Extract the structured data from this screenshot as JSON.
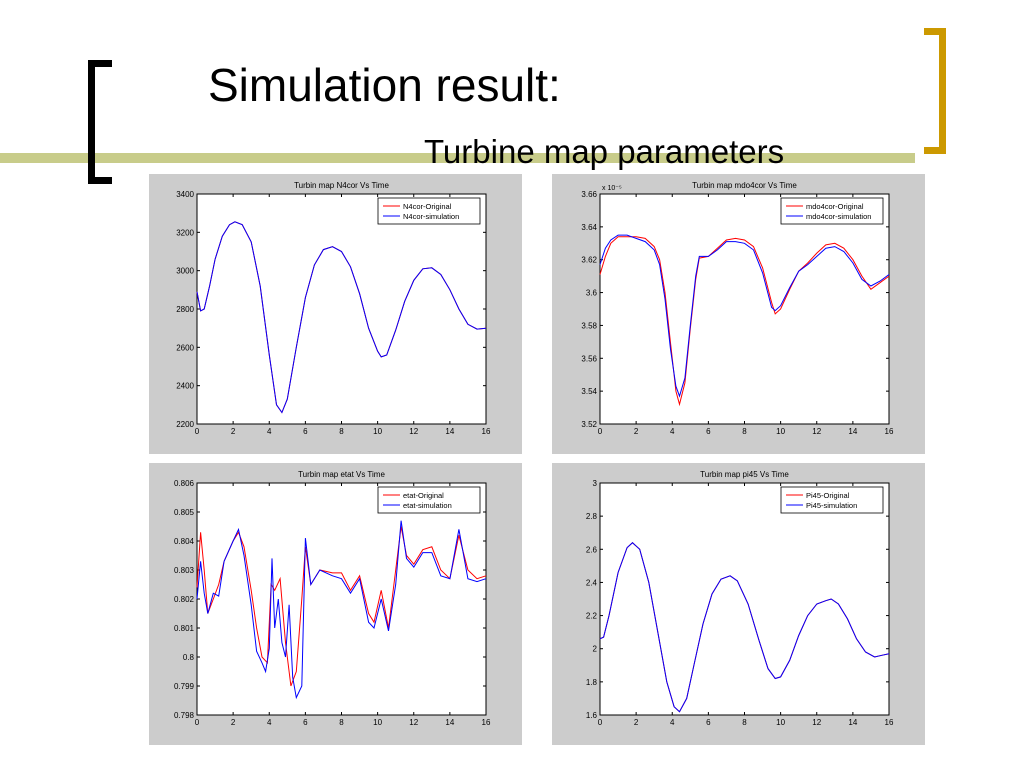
{
  "slide": {
    "title": "Simulation result:",
    "subtitle": "Turbine map parameters"
  },
  "colors": {
    "accent_bar": "#c8cc8a",
    "left_bracket": "#000000",
    "right_bracket": "#cc9900",
    "panel_bg": "#cccccc",
    "original": "#ff0000",
    "simulation": "#0000ff"
  },
  "chart_data": [
    {
      "type": "line",
      "title": "Turbin map N4cor Vs Time",
      "xlabel": "",
      "ylabel": "",
      "xlim": [
        0,
        16
      ],
      "ylim": [
        2200,
        3400
      ],
      "xticks": [
        0,
        2,
        4,
        6,
        8,
        10,
        12,
        14,
        16
      ],
      "yticks": [
        2200,
        2400,
        2600,
        2800,
        3000,
        3200,
        3400
      ],
      "ytick_labels": [
        "2200",
        "2400",
        "2600",
        "2800",
        "3000",
        "3200",
        "3400"
      ],
      "y_multiplier": "",
      "grid": false,
      "legend": "top-right",
      "series": [
        {
          "name": "N4cor-Original",
          "color": "#ff0000",
          "x": [
            0,
            0.2,
            0.4,
            0.7,
            1.0,
            1.4,
            1.8,
            2.1,
            2.5,
            3.0,
            3.5,
            4.0,
            4.4,
            4.7,
            5.0,
            5.5,
            6.0,
            6.5,
            7.0,
            7.5,
            8.0,
            8.5,
            9.0,
            9.5,
            10.0,
            10.2,
            10.5,
            11.0,
            11.5,
            12.0,
            12.5,
            13.0,
            13.5,
            14.0,
            14.5,
            15.0,
            15.5,
            16.0
          ],
          "y": [
            2890,
            2790,
            2800,
            2920,
            3060,
            3180,
            3240,
            3255,
            3240,
            3150,
            2920,
            2560,
            2300,
            2260,
            2330,
            2600,
            2860,
            3030,
            3110,
            3125,
            3100,
            3020,
            2880,
            2700,
            2580,
            2550,
            2560,
            2690,
            2840,
            2950,
            3010,
            3015,
            2980,
            2900,
            2800,
            2720,
            2695,
            2700
          ]
        },
        {
          "name": "N4cor-simulation",
          "color": "#0000ff",
          "x": [
            0,
            0.2,
            0.4,
            0.7,
            1.0,
            1.4,
            1.8,
            2.1,
            2.5,
            3.0,
            3.5,
            4.0,
            4.4,
            4.7,
            5.0,
            5.5,
            6.0,
            6.5,
            7.0,
            7.5,
            8.0,
            8.5,
            9.0,
            9.5,
            10.0,
            10.2,
            10.5,
            11.0,
            11.5,
            12.0,
            12.5,
            13.0,
            13.5,
            14.0,
            14.5,
            15.0,
            15.5,
            16.0
          ],
          "y": [
            2890,
            2790,
            2800,
            2920,
            3060,
            3180,
            3240,
            3255,
            3240,
            3150,
            2920,
            2560,
            2300,
            2260,
            2330,
            2600,
            2860,
            3030,
            3110,
            3125,
            3100,
            3020,
            2880,
            2700,
            2580,
            2550,
            2560,
            2690,
            2840,
            2950,
            3010,
            3015,
            2980,
            2900,
            2800,
            2720,
            2695,
            2700
          ]
        }
      ]
    },
    {
      "type": "line",
      "title": "Turbin map mdo4cor Vs Time",
      "xlabel": "",
      "ylabel": "",
      "xlim": [
        0,
        16
      ],
      "ylim": [
        3.52,
        3.66
      ],
      "xticks": [
        0,
        2,
        4,
        6,
        8,
        10,
        12,
        14,
        16
      ],
      "yticks": [
        3.52,
        3.54,
        3.56,
        3.58,
        3.6,
        3.62,
        3.64,
        3.66
      ],
      "ytick_labels": [
        "3.52",
        "3.54",
        "3.56",
        "3.58",
        "3.6",
        "3.62",
        "3.64",
        "3.66"
      ],
      "y_multiplier": "x 10⁻⁵",
      "grid": false,
      "legend": "top-right",
      "series": [
        {
          "name": "mdo4cor-Original",
          "color": "#ff0000",
          "x": [
            0,
            0.3,
            0.6,
            1.0,
            1.5,
            2.0,
            2.5,
            3.0,
            3.3,
            3.6,
            3.9,
            4.2,
            4.4,
            4.7,
            5.0,
            5.3,
            5.5,
            6.0,
            6.5,
            7.0,
            7.5,
            8.0,
            8.5,
            9.0,
            9.5,
            9.7,
            10.0,
            10.5,
            11.0,
            11.5,
            12.0,
            12.5,
            13.0,
            13.5,
            14.0,
            14.5,
            15.0,
            15.5,
            16.0
          ],
          "y": [
            3.611,
            3.622,
            3.63,
            3.634,
            3.634,
            3.634,
            3.633,
            3.628,
            3.62,
            3.6,
            3.57,
            3.54,
            3.532,
            3.545,
            3.578,
            3.608,
            3.621,
            3.622,
            3.627,
            3.632,
            3.633,
            3.632,
            3.628,
            3.615,
            3.594,
            3.587,
            3.59,
            3.602,
            3.613,
            3.618,
            3.624,
            3.629,
            3.63,
            3.627,
            3.62,
            3.61,
            3.602,
            3.606,
            3.61
          ]
        },
        {
          "name": "mdo4cor-simulation",
          "color": "#0000ff",
          "x": [
            0,
            0.3,
            0.6,
            1.0,
            1.5,
            2.0,
            2.5,
            3.0,
            3.3,
            3.6,
            3.9,
            4.2,
            4.4,
            4.7,
            5.0,
            5.3,
            5.5,
            6.0,
            6.5,
            7.0,
            7.5,
            8.0,
            8.5,
            9.0,
            9.5,
            9.7,
            10.0,
            10.5,
            11.0,
            11.5,
            12.0,
            12.5,
            13.0,
            13.5,
            14.0,
            14.5,
            15.0,
            15.5,
            16.0
          ],
          "y": [
            3.617,
            3.627,
            3.632,
            3.635,
            3.635,
            3.633,
            3.631,
            3.626,
            3.617,
            3.596,
            3.566,
            3.543,
            3.537,
            3.548,
            3.58,
            3.61,
            3.622,
            3.622,
            3.626,
            3.631,
            3.631,
            3.63,
            3.626,
            3.612,
            3.591,
            3.589,
            3.592,
            3.603,
            3.613,
            3.617,
            3.622,
            3.627,
            3.628,
            3.625,
            3.618,
            3.608,
            3.604,
            3.607,
            3.611
          ]
        }
      ]
    },
    {
      "type": "line",
      "title": "Turbin map etat Vs Time",
      "xlabel": "",
      "ylabel": "",
      "xlim": [
        0,
        16
      ],
      "ylim": [
        0.798,
        0.806
      ],
      "xticks": [
        0,
        2,
        4,
        6,
        8,
        10,
        12,
        14,
        16
      ],
      "yticks": [
        0.798,
        0.799,
        0.8,
        0.801,
        0.802,
        0.803,
        0.804,
        0.805,
        0.806
      ],
      "ytick_labels": [
        "0.798",
        "0.799",
        "0.8",
        "0.801",
        "0.802",
        "0.803",
        "0.804",
        "0.805",
        "0.806"
      ],
      "y_multiplier": "",
      "grid": false,
      "legend": "top-right",
      "series": [
        {
          "name": "etat-Original",
          "color": "#ff0000",
          "x": [
            0,
            0.2,
            0.4,
            0.6,
            0.9,
            1.2,
            1.5,
            2.0,
            2.3,
            2.6,
            3.0,
            3.3,
            3.6,
            3.9,
            4.1,
            4.3,
            4.6,
            4.9,
            5.2,
            5.5,
            5.8,
            6.0,
            6.3,
            6.8,
            7.5,
            8.0,
            8.5,
            9.0,
            9.5,
            9.8,
            10.2,
            10.6,
            11.0,
            11.3,
            11.6,
            12.0,
            12.5,
            13.0,
            13.5,
            14.0,
            14.5,
            15.0,
            15.5,
            16.0
          ],
          "y": [
            0.8024,
            0.8043,
            0.803,
            0.8015,
            0.802,
            0.8025,
            0.8033,
            0.804,
            0.8043,
            0.8038,
            0.8023,
            0.801,
            0.8,
            0.7998,
            0.8025,
            0.8023,
            0.8027,
            0.8005,
            0.799,
            0.7995,
            0.802,
            0.8038,
            0.8025,
            0.803,
            0.8029,
            0.8029,
            0.8023,
            0.8028,
            0.8015,
            0.8012,
            0.8023,
            0.801,
            0.803,
            0.8045,
            0.8035,
            0.8032,
            0.8037,
            0.8038,
            0.803,
            0.8027,
            0.8042,
            0.803,
            0.8027,
            0.8028
          ]
        },
        {
          "name": "etat-simulation",
          "color": "#0000ff",
          "x": [
            0,
            0.2,
            0.4,
            0.6,
            0.9,
            1.2,
            1.5,
            2.0,
            2.3,
            2.6,
            3.0,
            3.3,
            3.6,
            3.8,
            4.0,
            4.15,
            4.3,
            4.5,
            4.7,
            4.9,
            5.1,
            5.3,
            5.5,
            5.8,
            6.0,
            6.3,
            6.8,
            7.5,
            8.0,
            8.5,
            9.0,
            9.5,
            9.8,
            10.2,
            10.6,
            11.0,
            11.3,
            11.6,
            12.0,
            12.5,
            13.0,
            13.5,
            14.0,
            14.5,
            15.0,
            15.5,
            16.0
          ],
          "y": [
            0.802,
            0.8033,
            0.8022,
            0.8015,
            0.8022,
            0.8021,
            0.8033,
            0.804,
            0.8044,
            0.8035,
            0.8018,
            0.8002,
            0.7998,
            0.7995,
            0.8003,
            0.8034,
            0.801,
            0.802,
            0.8005,
            0.8,
            0.8018,
            0.7993,
            0.7986,
            0.799,
            0.8041,
            0.8025,
            0.803,
            0.8028,
            0.8027,
            0.8022,
            0.8027,
            0.8012,
            0.801,
            0.802,
            0.8009,
            0.8025,
            0.8047,
            0.8034,
            0.8031,
            0.8036,
            0.8036,
            0.8028,
            0.8027,
            0.8044,
            0.8027,
            0.8026,
            0.8027
          ]
        }
      ]
    },
    {
      "type": "line",
      "title": "Turbin map pi45 Vs Time",
      "xlabel": "",
      "ylabel": "",
      "xlim": [
        0,
        16
      ],
      "ylim": [
        1.6,
        3.0
      ],
      "xticks": [
        0,
        2,
        4,
        6,
        8,
        10,
        12,
        14,
        16
      ],
      "yticks": [
        1.6,
        1.8,
        2.0,
        2.2,
        2.4,
        2.6,
        2.8,
        3.0
      ],
      "ytick_labels": [
        "1.6",
        "1.8",
        "2",
        "2.2",
        "2.4",
        "2.6",
        "2.8",
        "3"
      ],
      "y_multiplier": "",
      "grid": false,
      "legend": "top-right",
      "series": [
        {
          "name": "Pi45-Original",
          "color": "#ff0000",
          "x": [
            0,
            0.2,
            0.5,
            1.0,
            1.5,
            1.8,
            2.2,
            2.7,
            3.2,
            3.7,
            4.1,
            4.4,
            4.8,
            5.2,
            5.7,
            6.2,
            6.7,
            7.2,
            7.6,
            8.2,
            8.8,
            9.3,
            9.7,
            10.0,
            10.5,
            11.0,
            11.5,
            12.0,
            12.5,
            12.8,
            13.2,
            13.7,
            14.2,
            14.7,
            15.2,
            15.6,
            16.0
          ],
          "y": [
            2.06,
            2.07,
            2.2,
            2.46,
            2.61,
            2.64,
            2.6,
            2.4,
            2.1,
            1.8,
            1.65,
            1.62,
            1.7,
            1.9,
            2.15,
            2.33,
            2.42,
            2.44,
            2.41,
            2.27,
            2.05,
            1.88,
            1.82,
            1.83,
            1.93,
            2.08,
            2.2,
            2.27,
            2.29,
            2.3,
            2.27,
            2.18,
            2.06,
            1.98,
            1.95,
            1.96,
            1.97
          ]
        },
        {
          "name": "Pi45-simulation",
          "color": "#0000ff",
          "x": [
            0,
            0.2,
            0.5,
            1.0,
            1.5,
            1.8,
            2.2,
            2.7,
            3.2,
            3.7,
            4.1,
            4.4,
            4.8,
            5.2,
            5.7,
            6.2,
            6.7,
            7.2,
            7.6,
            8.2,
            8.8,
            9.3,
            9.7,
            10.0,
            10.5,
            11.0,
            11.5,
            12.0,
            12.5,
            12.8,
            13.2,
            13.7,
            14.2,
            14.7,
            15.2,
            15.6,
            16.0
          ],
          "y": [
            2.06,
            2.07,
            2.2,
            2.46,
            2.61,
            2.64,
            2.6,
            2.4,
            2.1,
            1.8,
            1.65,
            1.62,
            1.7,
            1.9,
            2.15,
            2.33,
            2.42,
            2.44,
            2.41,
            2.27,
            2.05,
            1.88,
            1.82,
            1.83,
            1.93,
            2.08,
            2.2,
            2.27,
            2.29,
            2.3,
            2.27,
            2.18,
            2.06,
            1.98,
            1.95,
            1.96,
            1.97
          ]
        }
      ]
    }
  ]
}
